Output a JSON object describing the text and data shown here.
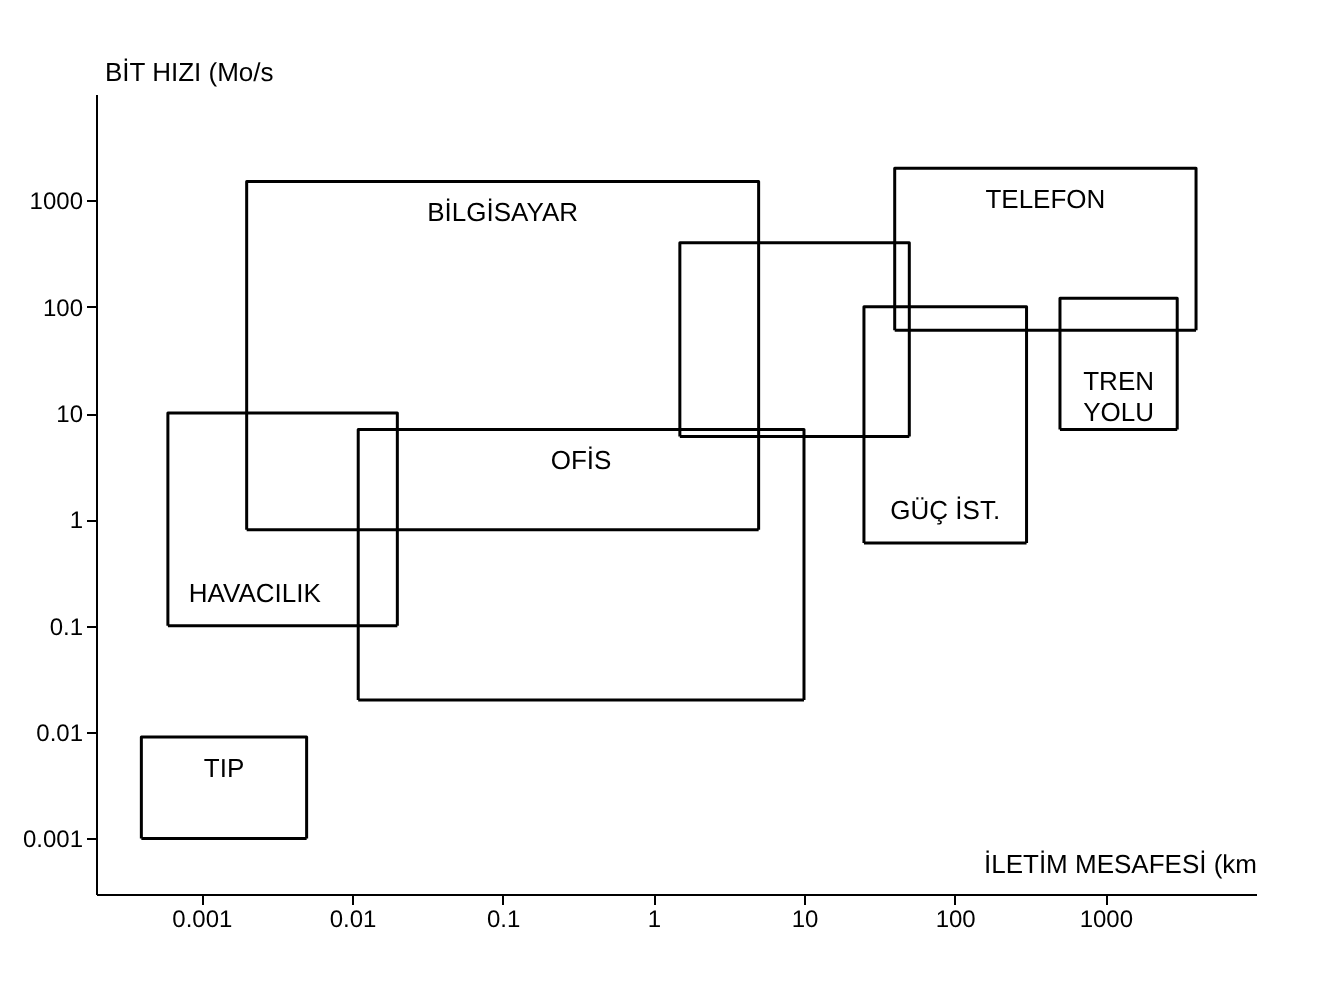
{
  "chart_data": {
    "type": "line",
    "log": "xy",
    "xlabel": "İLETİM MESAFESİ (km",
    "ylabel": "BİT HIZI (Mo/s",
    "xlim": [
      0.0002,
      10000
    ],
    "ylim": [
      0.0003,
      10000
    ],
    "xticks": [
      0.001,
      0.01,
      0.1,
      1,
      10,
      100,
      1000
    ],
    "yticks": [
      0.001,
      0.01,
      0.1,
      1,
      10,
      100,
      1000
    ],
    "series": [
      {
        "name": "BİLGİSAYAR",
        "color": "#000000",
        "x": [
          0.002,
          0.002,
          5,
          5
        ],
        "values": [
          0.8,
          1500,
          1500,
          0.8
        ]
      },
      {
        "color": "#000000",
        "x": [
          0.002,
          5
        ],
        "values": [
          0.8,
          0.8
        ]
      },
      {
        "name": "HAVACILIK",
        "color": "#000000",
        "x": [
          0.0006,
          0.0006,
          0.02,
          0.02
        ],
        "values": [
          0.1,
          10,
          10,
          0.1
        ]
      },
      {
        "color": "#000000",
        "x": [
          0.0006,
          0.02
        ],
        "values": [
          0.1,
          0.1
        ]
      },
      {
        "name": "OFİS",
        "color": "#000000",
        "x": [
          0.011,
          0.011,
          10,
          10
        ],
        "values": [
          0.02,
          7,
          7,
          0.02
        ]
      },
      {
        "color": "#000000",
        "x": [
          0.011,
          10
        ],
        "values": [
          0.02,
          0.02
        ]
      },
      {
        "name": "TIP",
        "color": "#000000",
        "x": [
          0.0004,
          0.0004,
          0.005,
          0.005
        ],
        "values": [
          0.001,
          0.009,
          0.009,
          0.001
        ]
      },
      {
        "color": "#000000",
        "x": [
          0.0004,
          0.005
        ],
        "values": [
          0.001,
          0.001
        ]
      },
      {
        "color": "#000000",
        "x": [
          1.5,
          1.5,
          50,
          50
        ],
        "values": [
          6,
          400,
          400,
          6
        ]
      },
      {
        "color": "#000000",
        "x": [
          1.5,
          50
        ],
        "values": [
          6,
          6
        ]
      },
      {
        "name": "TELEFON",
        "color": "#000000",
        "x": [
          40,
          40,
          4000,
          4000
        ],
        "values": [
          60,
          2000,
          2000,
          60
        ]
      },
      {
        "color": "#000000",
        "x": [
          40,
          4000
        ],
        "values": [
          60,
          60
        ]
      },
      {
        "name": "GÜÇ İST.",
        "color": "#000000",
        "x": [
          25,
          25,
          300,
          300
        ],
        "values": [
          0.6,
          100,
          100,
          0.6
        ]
      },
      {
        "color": "#000000",
        "x": [
          25,
          300
        ],
        "values": [
          0.6,
          0.6
        ]
      },
      {
        "name": "TREN YOLU",
        "color": "#000000",
        "x": [
          500,
          500,
          3000,
          3000
        ],
        "values": [
          7,
          120,
          120,
          7
        ]
      },
      {
        "color": "#000000",
        "x": [
          500,
          3000
        ],
        "values": [
          7,
          7
        ]
      }
    ]
  }
}
